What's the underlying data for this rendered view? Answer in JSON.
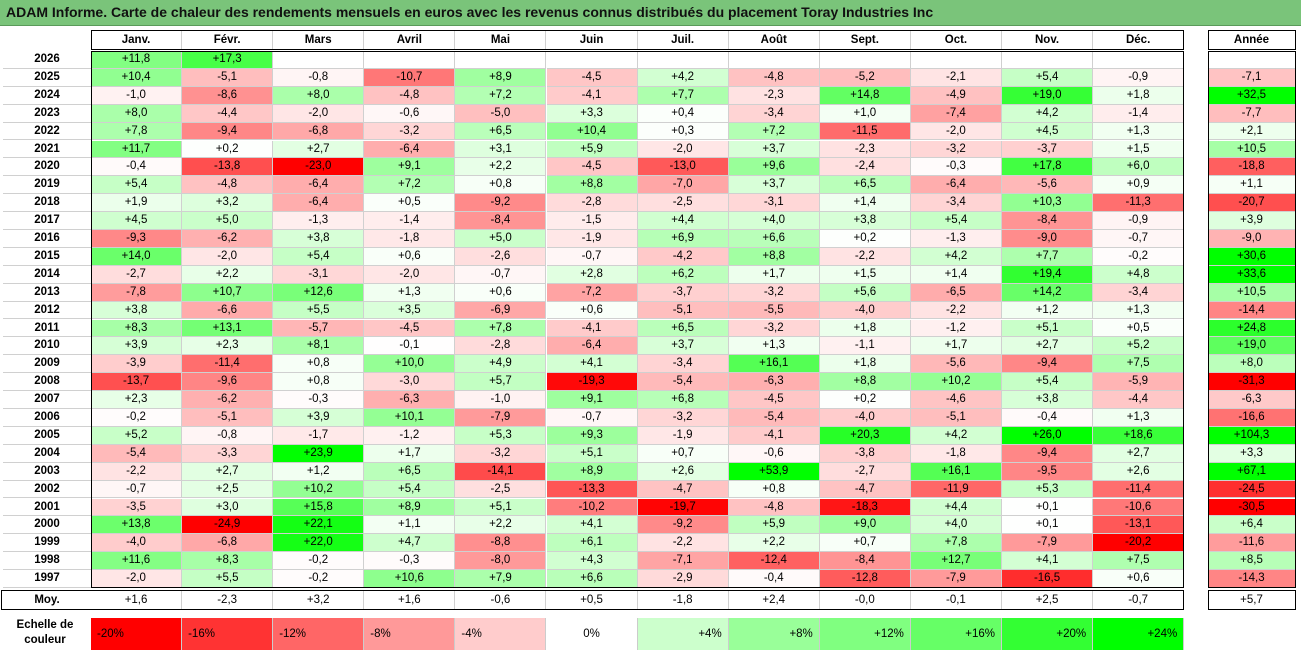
{
  "title": "ADAM Informe. Carte de chaleur des rendements mensuels en euros avec les revenus connus distribués du placement Toray Industries Inc",
  "chart_data": {
    "type": "heatmap",
    "columns": [
      "Janv.",
      "Févr.",
      "Mars",
      "Avril",
      "Mai",
      "Juin",
      "Juil.",
      "Août",
      "Sept.",
      "Oct.",
      "Nov.",
      "Déc."
    ],
    "year_column": "Année",
    "rows": [
      {
        "year": "2026",
        "values": [
          "+11,8",
          "+17,3",
          "",
          "",
          "",
          "",
          "",
          "",
          "",
          "",
          "",
          ""
        ],
        "annual": ""
      },
      {
        "year": "2025",
        "values": [
          "+10,4",
          "-5,1",
          "-0,8",
          "-10,7",
          "+8,9",
          "-4,5",
          "+4,2",
          "-4,8",
          "-5,2",
          "-2,1",
          "+5,4",
          "-0,9"
        ],
        "annual": "-7,1"
      },
      {
        "year": "2024",
        "values": [
          "-1,0",
          "-8,6",
          "+8,0",
          "-4,8",
          "+7,2",
          "-4,1",
          "+7,7",
          "-2,3",
          "+14,8",
          "-4,9",
          "+19,0",
          "+1,8"
        ],
        "annual": "+32,5"
      },
      {
        "year": "2023",
        "values": [
          "+8,0",
          "-4,4",
          "-2,0",
          "-0,6",
          "-5,0",
          "+3,3",
          "+0,4",
          "-3,4",
          "+1,0",
          "-7,4",
          "+4,2",
          "-1,4"
        ],
        "annual": "-7,7"
      },
      {
        "year": "2022",
        "values": [
          "+7,8",
          "-9,4",
          "-6,8",
          "-3,2",
          "+6,5",
          "+10,4",
          "+0,3",
          "+7,2",
          "-11,5",
          "-2,0",
          "+4,5",
          "+1,3"
        ],
        "annual": "+2,1"
      },
      {
        "year": "2021",
        "values": [
          "+11,7",
          "+0,2",
          "+2,7",
          "-6,4",
          "+3,1",
          "+5,9",
          "-2,0",
          "+3,7",
          "-2,3",
          "-3,2",
          "-3,7",
          "+1,5"
        ],
        "annual": "+10,5"
      },
      {
        "year": "2020",
        "values": [
          "-0,4",
          "-13,8",
          "-23,0",
          "+9,1",
          "+2,2",
          "-4,5",
          "-13,0",
          "+9,6",
          "-2,4",
          "-0,3",
          "+17,8",
          "+6,0"
        ],
        "annual": "-18,8"
      },
      {
        "year": "2019",
        "values": [
          "+5,4",
          "-4,8",
          "-6,4",
          "+7,2",
          "+0,8",
          "+8,8",
          "-7,0",
          "+3,7",
          "+6,5",
          "-6,4",
          "-5,6",
          "+0,9"
        ],
        "annual": "+1,1"
      },
      {
        "year": "2018",
        "values": [
          "+1,9",
          "+3,2",
          "-6,4",
          "+0,5",
          "-9,2",
          "-2,8",
          "-2,5",
          "-3,1",
          "+1,4",
          "-3,4",
          "+10,3",
          "-11,3"
        ],
        "annual": "-20,7"
      },
      {
        "year": "2017",
        "values": [
          "+4,5",
          "+5,0",
          "-1,3",
          "-1,4",
          "-8,4",
          "-1,5",
          "+4,4",
          "+4,0",
          "+3,8",
          "+5,4",
          "-8,4",
          "-0,9"
        ],
        "annual": "+3,9"
      },
      {
        "year": "2016",
        "values": [
          "-9,3",
          "-6,2",
          "+3,8",
          "-1,8",
          "+5,0",
          "-1,9",
          "+6,9",
          "+6,6",
          "+0,2",
          "-1,3",
          "-9,0",
          "-0,7"
        ],
        "annual": "-9,0"
      },
      {
        "year": "2015",
        "values": [
          "+14,0",
          "-2,0",
          "+5,4",
          "+0,6",
          "-2,6",
          "-0,7",
          "-4,2",
          "+8,8",
          "-2,2",
          "+4,2",
          "+7,7",
          "-0,2"
        ],
        "annual": "+30,6"
      },
      {
        "year": "2014",
        "values": [
          "-2,7",
          "+2,2",
          "-3,1",
          "-2,0",
          "-0,7",
          "+2,8",
          "+6,2",
          "+1,7",
          "+1,5",
          "+1,4",
          "+19,4",
          "+4,8"
        ],
        "annual": "+33,6"
      },
      {
        "year": "2013",
        "values": [
          "-7,8",
          "+10,7",
          "+12,6",
          "+1,3",
          "+0,6",
          "-7,2",
          "-3,7",
          "-3,2",
          "+5,6",
          "-6,5",
          "+14,2",
          "-3,4"
        ],
        "annual": "+10,5"
      },
      {
        "year": "2012",
        "values": [
          "+3,8",
          "-6,6",
          "+5,5",
          "+3,5",
          "-6,9",
          "+0,6",
          "-5,1",
          "-5,5",
          "-4,0",
          "-2,2",
          "+1,2",
          "+1,3"
        ],
        "annual": "-14,4"
      },
      {
        "year": "2011",
        "values": [
          "+8,3",
          "+13,1",
          "-5,7",
          "-4,5",
          "+7,8",
          "-4,1",
          "+6,5",
          "-3,2",
          "+1,8",
          "-1,2",
          "+5,1",
          "+0,5"
        ],
        "annual": "+24,8"
      },
      {
        "year": "2010",
        "values": [
          "+3,9",
          "+2,3",
          "+8,1",
          "-0,1",
          "-2,8",
          "-6,4",
          "+3,7",
          "+1,3",
          "-1,1",
          "+1,7",
          "+2,7",
          "+5,2"
        ],
        "annual": "+19,0"
      },
      {
        "year": "2009",
        "values": [
          "-3,9",
          "-11,4",
          "+0,8",
          "+10,0",
          "+4,9",
          "+4,1",
          "-3,4",
          "+16,1",
          "+1,8",
          "-5,6",
          "-9,4",
          "+7,5"
        ],
        "annual": "+8,0"
      },
      {
        "year": "2008",
        "values": [
          "-13,7",
          "-9,6",
          "+0,8",
          "-3,0",
          "+5,7",
          "-19,3",
          "-5,4",
          "-6,3",
          "+8,8",
          "+10,2",
          "+5,4",
          "-5,9"
        ],
        "annual": "-31,3"
      },
      {
        "year": "2007",
        "values": [
          "+2,3",
          "-6,2",
          "-0,3",
          "-6,3",
          "-1,0",
          "+9,1",
          "+6,8",
          "-4,5",
          "+0,2",
          "-4,6",
          "+3,8",
          "-4,4"
        ],
        "annual": "-6,3"
      },
      {
        "year": "2006",
        "values": [
          "-0,2",
          "-5,1",
          "+3,9",
          "+10,1",
          "-7,9",
          "-0,7",
          "-3,2",
          "-5,4",
          "-4,0",
          "-5,1",
          "-0,4",
          "+1,3"
        ],
        "annual": "-16,6"
      },
      {
        "year": "2005",
        "values": [
          "+5,2",
          "-0,8",
          "-1,7",
          "-1,2",
          "+5,3",
          "+9,3",
          "-1,9",
          "-4,1",
          "+20,3",
          "+4,2",
          "+26,0",
          "+18,6"
        ],
        "annual": "+104,3"
      },
      {
        "year": "2004",
        "values": [
          "-5,4",
          "-3,3",
          "+23,9",
          "+1,7",
          "-3,2",
          "+5,1",
          "+0,7",
          "-0,6",
          "-3,8",
          "-1,8",
          "-9,4",
          "+2,7"
        ],
        "annual": "+3,3"
      },
      {
        "year": "2003",
        "values": [
          "-2,2",
          "+2,7",
          "+1,2",
          "+6,5",
          "-14,1",
          "+8,9",
          "+2,6",
          "+53,9",
          "-2,7",
          "+16,1",
          "-9,5",
          "+2,6"
        ],
        "annual": "+67,1"
      },
      {
        "year": "2002",
        "values": [
          "-0,7",
          "+2,5",
          "+10,2",
          "+5,4",
          "-2,5",
          "-13,3",
          "-4,7",
          "+0,8",
          "-4,7",
          "-11,9",
          "+5,3",
          "-11,4"
        ],
        "annual": "-24,5"
      },
      {
        "year": "2001",
        "values": [
          "-3,5",
          "+3,0",
          "+15,8",
          "+8,9",
          "+5,1",
          "-10,2",
          "-19,7",
          "-4,8",
          "-18,3",
          "+4,4",
          "+0,1",
          "-10,6"
        ],
        "annual": "-30,5"
      },
      {
        "year": "2000",
        "values": [
          "+13,8",
          "-24,9",
          "+22,1",
          "+1,1",
          "+2,2",
          "+4,1",
          "-9,2",
          "+5,9",
          "+9,0",
          "+4,0",
          "+0,1",
          "-13,1"
        ],
        "annual": "+6,4"
      },
      {
        "year": "1999",
        "values": [
          "-4,0",
          "-6,8",
          "+22,0",
          "+4,7",
          "-8,8",
          "+6,1",
          "-2,2",
          "+2,2",
          "+0,7",
          "+7,8",
          "-7,9",
          "-20,2"
        ],
        "annual": "-11,6"
      },
      {
        "year": "1998",
        "values": [
          "+11,6",
          "+8,3",
          "-0,2",
          "-0,3",
          "-8,0",
          "+4,3",
          "-7,1",
          "-12,4",
          "-8,4",
          "+12,7",
          "+4,1",
          "+7,5"
        ],
        "annual": "+8,5"
      },
      {
        "year": "1997",
        "values": [
          "-2,0",
          "+5,5",
          "-0,2",
          "+10,6",
          "+7,9",
          "+6,6",
          "-2,9",
          "-0,4",
          "-12,8",
          "-7,9",
          "-16,5",
          "+0,6"
        ],
        "annual": "-14,3"
      }
    ],
    "average": {
      "label": "Moy.",
      "values": [
        "+1,6",
        "-2,3",
        "+3,2",
        "+1,6",
        "-0,6",
        "+0,5",
        "-1,8",
        "+2,4",
        "-0,0",
        "-0,1",
        "+2,5",
        "-0,7"
      ],
      "annual": "+5,7"
    },
    "scale": {
      "label_line1": "Echelle de",
      "label_line2": "couleur",
      "steps": [
        {
          "label": "-20%",
          "value": -20,
          "color": "#ff0000"
        },
        {
          "label": "-16%",
          "value": -16,
          "color": "#ff3333"
        },
        {
          "label": "-12%",
          "value": -12,
          "color": "#ff6666"
        },
        {
          "label": "-8%",
          "value": -8,
          "color": "#ff9999"
        },
        {
          "label": "-4%",
          "value": -4,
          "color": "#ffcccc"
        },
        {
          "label": "0%",
          "value": 0,
          "color": "#ffffff"
        },
        {
          "label": "+4%",
          "value": 4,
          "color": "#ccffcc"
        },
        {
          "label": "+8%",
          "value": 8,
          "color": "#99ff99"
        },
        {
          "label": "+12%",
          "value": 12,
          "color": "#80ff80"
        },
        {
          "label": "+16%",
          "value": 16,
          "color": "#66ff66"
        },
        {
          "label": "+20%",
          "value": 20,
          "color": "#33ff33"
        },
        {
          "label": "+24%",
          "value": 24,
          "color": "#00ff00"
        }
      ]
    },
    "colors": {
      "negative": "#ff0000",
      "neutral": "#ffffff",
      "positive": "#00ff00"
    }
  }
}
